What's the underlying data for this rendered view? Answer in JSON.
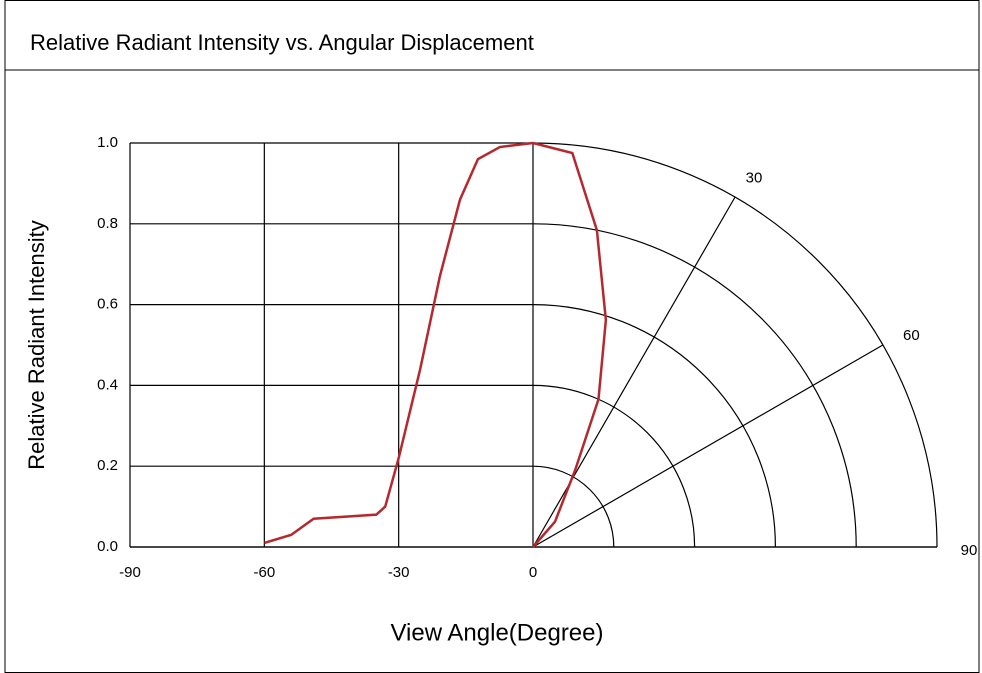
{
  "chart_data": {
    "type": "polar_intensity",
    "title": "Relative Radiant Intensity vs. Angular Displacement",
    "xlabel": "View Angle(Degree)",
    "ylabel": "Relative Radiant Intensity",
    "xlim": [
      -90,
      0
    ],
    "xticks": [
      -90,
      -60,
      -30,
      0
    ],
    "ylim": [
      0,
      1
    ],
    "yticks": [
      {
        "value": 0,
        "label": "0.0"
      },
      0.2,
      0.4,
      0.6,
      0.8,
      {
        "value": 1,
        "label": "1.0"
      }
    ],
    "angle_ticks": [
      30,
      60,
      90
    ],
    "rticks": [
      0.2,
      0.4,
      0.6,
      0.8,
      1
    ],
    "color": "#b5282e",
    "cartesian_curve": {
      "x": [
        -60,
        -54,
        -49,
        -35,
        -33,
        -30,
        -25.2,
        -20.8,
        -16.3,
        -12.3,
        -7.4,
        0
      ],
      "values": [
        0.01,
        0.03,
        0.07,
        0.08,
        0.1,
        0.22,
        0.44,
        0.67,
        0.86,
        0.96,
        0.99,
        1.0
      ]
    },
    "polar_curve": {
      "angles": [
        0,
        5.7,
        11.4,
        17.8,
        23.9,
        28.6,
        41,
        45
      ],
      "values": [
        1.0,
        0.98,
        0.8,
        0.59,
        0.4,
        0.22,
        0.083,
        0
      ]
    }
  }
}
